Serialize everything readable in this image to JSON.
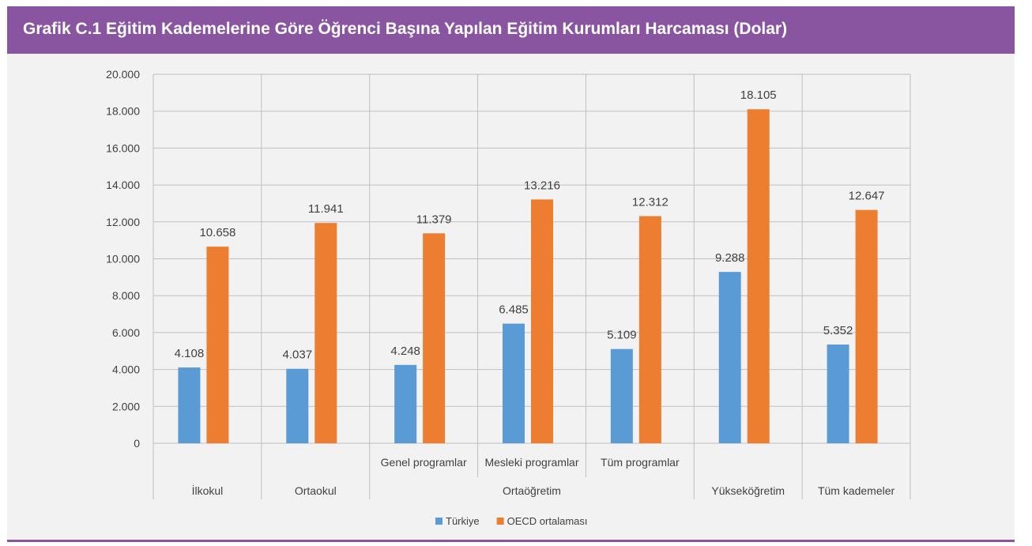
{
  "header": {
    "title": "Grafik C.1 Eğitim Kademelerine Göre Öğrenci Başına Yapılan Eğitim Kurumları Harcaması (Dolar)"
  },
  "colors": {
    "header_bg": "#8a55a0",
    "panel_bg": "#f2f2f2",
    "turkiye": "#5b9bd5",
    "oecd": "#ed7d31",
    "grid": "#bfbfbf",
    "text": "#404040"
  },
  "chart_data": {
    "type": "bar",
    "categories": [
      "İlkokul",
      "Ortaokul",
      "Genel programlar",
      "Mesleki programlar",
      "Tüm programlar",
      "Yükseköğretim",
      "Tüm kademeler"
    ],
    "category_groups": [
      {
        "label": "İlkokul",
        "members": [
          0
        ]
      },
      {
        "label": "Ortaokul",
        "members": [
          1
        ]
      },
      {
        "label": "Ortaöğretim",
        "members": [
          2,
          3,
          4
        ]
      },
      {
        "label": "Yükseköğretim",
        "members": [
          5
        ]
      },
      {
        "label": "Tüm kademeler",
        "members": [
          6
        ]
      }
    ],
    "subcategory_labels": [
      "",
      "",
      "Genel programlar",
      "Mesleki programlar",
      "Tüm programlar",
      "",
      ""
    ],
    "series": [
      {
        "name": "Türkiye",
        "values": [
          4108,
          4037,
          4248,
          6485,
          5109,
          9288,
          5352
        ],
        "labels": [
          "4.108",
          "4.037",
          "4.248",
          "6.485",
          "5.109",
          "9.288",
          "5.352"
        ]
      },
      {
        "name": "OECD ortalaması",
        "values": [
          10658,
          11941,
          11379,
          13216,
          12312,
          18105,
          12647
        ],
        "labels": [
          "10.658",
          "11.941",
          "11.379",
          "13.216",
          "12.312",
          "18.105",
          "12.647"
        ]
      }
    ],
    "ylim": [
      0,
      20000
    ],
    "yticks": [
      0,
      2000,
      4000,
      6000,
      8000,
      10000,
      12000,
      14000,
      16000,
      18000,
      20000
    ],
    "ytick_labels": [
      "0",
      "2.000",
      "4.000",
      "6.000",
      "8.000",
      "10.000",
      "12.000",
      "14.000",
      "16.000",
      "18.000",
      "20.000"
    ],
    "grid": true,
    "legend_position": "bottom"
  }
}
